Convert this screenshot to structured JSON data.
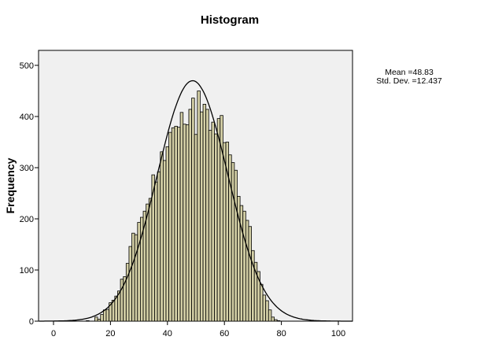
{
  "chart_data": {
    "type": "bar",
    "subtype": "histogram",
    "title": "Histogram",
    "xlabel": "",
    "ylabel": "Frequency",
    "xlim": [
      -5,
      105
    ],
    "ylim": [
      0,
      530
    ],
    "x_ticks": [
      0,
      20,
      40,
      60,
      80,
      100
    ],
    "y_ticks": [
      0,
      100,
      200,
      300,
      400,
      500
    ],
    "bin_width": 1,
    "bin_centers": [
      12,
      15,
      16,
      17,
      18,
      19,
      20,
      21,
      22,
      23,
      24,
      25,
      26,
      27,
      28,
      29,
      30,
      31,
      32,
      33,
      34,
      35,
      36,
      37,
      38,
      39,
      40,
      41,
      42,
      43,
      44,
      45,
      46,
      47,
      48,
      49,
      50,
      51,
      52,
      53,
      54,
      55,
      56,
      57,
      58,
      59,
      60,
      61,
      62,
      63,
      64,
      65,
      66,
      67,
      68,
      69,
      70,
      71,
      72,
      73,
      74,
      75,
      76,
      77,
      78,
      79
    ],
    "values": [
      1,
      8,
      4,
      13,
      22,
      23,
      36,
      41,
      49,
      59,
      82,
      87,
      113,
      146,
      172,
      169,
      193,
      203,
      215,
      229,
      240,
      286,
      272,
      292,
      331,
      314,
      341,
      369,
      378,
      381,
      379,
      408,
      385,
      384,
      414,
      436,
      365,
      450,
      409,
      424,
      414,
      373,
      389,
      366,
      396,
      402,
      349,
      350,
      325,
      310,
      295,
      244,
      226,
      215,
      197,
      185,
      138,
      115,
      97,
      72,
      51,
      40,
      22,
      8,
      3,
      1
    ],
    "normal_curve": {
      "mean": 48.83,
      "std_dev": 12.437,
      "peak": 470
    },
    "stats": {
      "mean_label": "Mean =48.83",
      "std_label": "Std. Dev. =12.437"
    },
    "grid": false,
    "legend": "right",
    "colors": {
      "bar_fill": "#d4d0a6",
      "bar_stroke": "#000000",
      "plot_bg": "#f0f0f0",
      "curve": "#000000"
    }
  }
}
